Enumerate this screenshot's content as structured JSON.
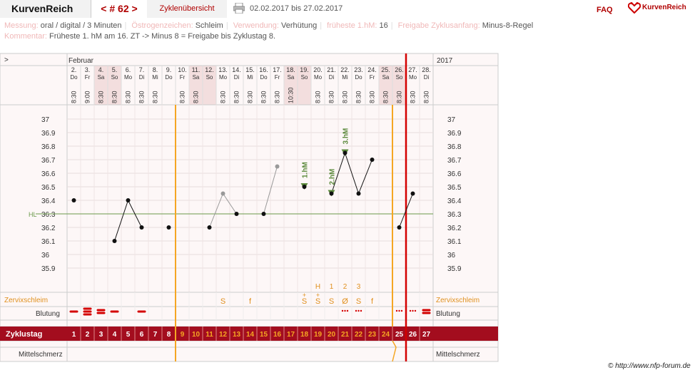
{
  "header": {
    "brand": "KurvenReich",
    "cycle_label": "< # 62 >",
    "overview_label": "Zyklenübersicht",
    "date_range": "02.02.2017 bis 27.02.2017",
    "faq": "FAQ",
    "logo_text": "KurvenReich",
    "print_icon": "printer-icon"
  },
  "info": {
    "messung_label": "Messung:",
    "messung_value": "oral / digital / 3 Minuten",
    "oestrogen_label": "Östrogenzeichen:",
    "oestrogen_value": "Schleim",
    "verwendung_label": "Verwendung:",
    "verwendung_value": "Verhütung",
    "fruehste_label": "früheste 1.hM:",
    "fruehste_value": "16",
    "freigabe_label": "Freigabe Zyklusanfang:",
    "freigabe_value": "Minus-8-Regel",
    "kommentar_label": "Kommentar:",
    "kommentar_value": "Früheste 1. hM am 16. ZT -> Minus 8 = Freigabe bis Zyklustag 8."
  },
  "chart_data": {
    "type": "line",
    "month_label": "Februar",
    "year_label": "2017",
    "nav_label": ">",
    "days": [
      {
        "date": "2.",
        "wd": "Do",
        "time": "8:30",
        "we": false
      },
      {
        "date": "3.",
        "wd": "Fr",
        "time": "9:00",
        "we": false
      },
      {
        "date": "4.",
        "wd": "Sa",
        "time": "8:30",
        "we": true
      },
      {
        "date": "5.",
        "wd": "So",
        "time": "8:30",
        "we": true
      },
      {
        "date": "6.",
        "wd": "Mo",
        "time": "8:30",
        "we": false
      },
      {
        "date": "7.",
        "wd": "Di",
        "time": "8:30",
        "we": false
      },
      {
        "date": "8.",
        "wd": "Mi",
        "time": "8:30",
        "we": false
      },
      {
        "date": "9.",
        "wd": "Do",
        "time": "",
        "we": false
      },
      {
        "date": "10.",
        "wd": "Fr",
        "time": "8:30",
        "we": false
      },
      {
        "date": "11.",
        "wd": "Sa",
        "time": "8:30",
        "we": true
      },
      {
        "date": "12.",
        "wd": "So",
        "time": "",
        "we": true
      },
      {
        "date": "13.",
        "wd": "Mo",
        "time": "8:30",
        "we": false
      },
      {
        "date": "14.",
        "wd": "Di",
        "time": "8:30",
        "we": false
      },
      {
        "date": "15.",
        "wd": "Mi",
        "time": "8:30",
        "we": false
      },
      {
        "date": "16.",
        "wd": "Do",
        "time": "8:30",
        "we": false
      },
      {
        "date": "17.",
        "wd": "Fr",
        "time": "8:30",
        "we": false
      },
      {
        "date": "18.",
        "wd": "Sa",
        "time": "10:30",
        "we": true
      },
      {
        "date": "19.",
        "wd": "So",
        "time": "",
        "we": true
      },
      {
        "date": "20.",
        "wd": "Mo",
        "time": "8:30",
        "we": false
      },
      {
        "date": "21.",
        "wd": "Di",
        "time": "8:30",
        "we": false
      },
      {
        "date": "22.",
        "wd": "Mi",
        "time": "8:30",
        "we": false
      },
      {
        "date": "23.",
        "wd": "Do",
        "time": "8:30",
        "we": false
      },
      {
        "date": "24.",
        "wd": "Fr",
        "time": "8:30",
        "we": false
      },
      {
        "date": "25.",
        "wd": "Sa",
        "time": "8:30",
        "we": true
      },
      {
        "date": "26.",
        "wd": "So",
        "time": "8:30",
        "we": true
      },
      {
        "date": "27.",
        "wd": "Mo",
        "time": "8:30",
        "we": false
      },
      {
        "date": "28.",
        "wd": "Di",
        "time": "8:30",
        "we": false
      }
    ],
    "cycle_days": [
      "1",
      "2",
      "3",
      "4",
      "5",
      "6",
      "7",
      "8",
      "9",
      "10",
      "11",
      "12",
      "13",
      "14",
      "15",
      "16",
      "17",
      "18",
      "19",
      "20",
      "21",
      "22",
      "23",
      "24",
      "25",
      "26",
      "27"
    ],
    "y_ticks": [
      "37",
      "36.9",
      "36.8",
      "36.7",
      "36.6",
      "36.5",
      "36.4",
      "36.3",
      "36.2",
      "36.1",
      "36",
      "35.9"
    ],
    "ylim": [
      35.9,
      37.0
    ],
    "hl_label": "HL",
    "hl_value": 36.3,
    "temps": [
      {
        "day": 2,
        "value": 36.4,
        "gray": false
      },
      {
        "day": 5,
        "value": 36.1,
        "gray": false
      },
      {
        "day": 6,
        "value": 36.4,
        "gray": false
      },
      {
        "day": 7,
        "value": 36.2,
        "gray": false
      },
      {
        "day": 9,
        "value": 36.2,
        "gray": false
      },
      {
        "day": 12,
        "value": 36.2,
        "gray": false
      },
      {
        "day": 13,
        "value": 36.45,
        "gray": true
      },
      {
        "day": 14,
        "value": 36.3,
        "gray": false
      },
      {
        "day": 16,
        "value": 36.3,
        "gray": false
      },
      {
        "day": 17,
        "value": 36.65,
        "gray": true
      },
      {
        "day": 19,
        "value": 36.5,
        "gray": false
      },
      {
        "day": 21,
        "value": 36.45,
        "gray": false
      },
      {
        "day": 22,
        "value": 36.75,
        "gray": false
      },
      {
        "day": 23,
        "value": 36.45,
        "gray": false
      },
      {
        "day": 24,
        "value": 36.7,
        "gray": false
      },
      {
        "day": 26,
        "value": 36.2,
        "gray": false
      },
      {
        "day": 27,
        "value": 36.45,
        "gray": false
      }
    ],
    "line_segments": [
      [
        5,
        6,
        7
      ],
      [
        12,
        13,
        14
      ],
      [
        16,
        17
      ],
      [
        21,
        22,
        23,
        24
      ],
      [
        26,
        27
      ]
    ],
    "hm_markers": [
      {
        "day": 19,
        "label": "1.hM"
      },
      {
        "day": 21,
        "label": "2.hM"
      },
      {
        "day": 22,
        "label": "3.hM"
      }
    ],
    "orange_lines_after_day": [
      8,
      24
    ],
    "red_line_after_day": 26,
    "zervix_label": "Zervixschleim",
    "zervix": [
      {
        "day": 13,
        "text": "S"
      },
      {
        "day": 15,
        "text": "f"
      },
      {
        "day": 19,
        "text": "S",
        "plus": "+"
      },
      {
        "day": 20,
        "text": "S",
        "plus": "+"
      },
      {
        "day": 21,
        "text": "S"
      },
      {
        "day": 22,
        "text": "Ø"
      },
      {
        "day": 23,
        "text": "S"
      },
      {
        "day": 24,
        "text": "f"
      }
    ],
    "peak_counts": [
      {
        "day": 20,
        "text": "H"
      },
      {
        "day": 21,
        "text": "1"
      },
      {
        "day": 22,
        "text": "2"
      },
      {
        "day": 23,
        "text": "3"
      }
    ],
    "blutung_label": "Blutung",
    "blutung": [
      {
        "day": 1,
        "type": "light"
      },
      {
        "day": 2,
        "type": "heavy"
      },
      {
        "day": 3,
        "type": "medium"
      },
      {
        "day": 4,
        "type": "light"
      },
      {
        "day": 6,
        "type": "light"
      },
      {
        "day": 21,
        "type": "dots"
      },
      {
        "day": 22,
        "type": "dots"
      },
      {
        "day": 25,
        "type": "dots"
      },
      {
        "day": 26,
        "type": "dots"
      },
      {
        "day": 27,
        "type": "medium"
      }
    ],
    "zyklustag_label": "Zyklustag",
    "mittelschmerz_label": "Mittelschmerz"
  },
  "credit": "© http://www.nfp-forum.de"
}
